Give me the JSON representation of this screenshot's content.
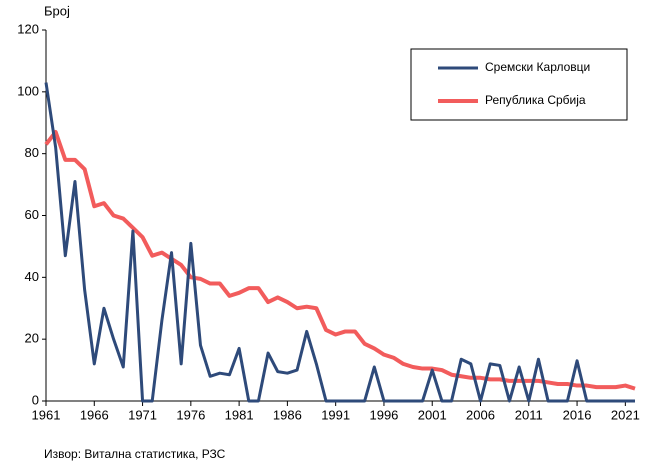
{
  "chart_data": {
    "type": "line",
    "y_label": "Број",
    "source": "Извор: Витална статистика, РЗС",
    "x": [
      1961,
      1962,
      1963,
      1964,
      1965,
      1966,
      1967,
      1968,
      1969,
      1970,
      1971,
      1972,
      1973,
      1974,
      1975,
      1976,
      1977,
      1978,
      1979,
      1980,
      1981,
      1982,
      1983,
      1984,
      1985,
      1986,
      1987,
      1988,
      1989,
      1990,
      1991,
      1992,
      1993,
      1994,
      1995,
      1996,
      1997,
      1998,
      1999,
      2000,
      2001,
      2002,
      2003,
      2004,
      2005,
      2006,
      2007,
      2008,
      2009,
      2010,
      2011,
      2012,
      2013,
      2014,
      2015,
      2016,
      2017,
      2018,
      2019,
      2020,
      2021,
      2022
    ],
    "series": [
      {
        "name": "Сремски Карловци",
        "color": "#2e4a7a",
        "values": [
          103,
          82,
          47,
          71,
          36,
          12,
          30,
          20,
          11,
          55,
          0,
          0,
          26,
          48,
          12,
          51,
          18,
          8,
          9,
          8.5,
          17,
          0,
          0,
          15.5,
          9.5,
          9,
          10,
          22.5,
          12,
          0,
          0,
          0,
          0,
          0,
          11,
          0,
          0,
          0,
          0,
          0,
          10,
          0,
          0,
          13.5,
          12,
          0,
          12,
          11.5,
          0,
          11,
          0,
          13.5,
          0,
          0,
          0,
          13,
          0,
          0,
          0,
          0,
          0,
          0
        ]
      },
      {
        "name": "Република Србија",
        "color": "#f25c5c",
        "values": [
          83,
          87,
          78,
          78,
          75,
          63,
          64,
          60,
          59,
          56,
          53,
          47,
          48,
          46,
          44,
          40,
          39.5,
          38,
          38,
          34,
          35,
          36.5,
          36.5,
          32,
          33.5,
          32,
          30,
          30.5,
          30,
          23,
          21.5,
          22.5,
          22.5,
          18.5,
          17,
          15,
          14,
          12,
          11,
          10.5,
          10.5,
          10,
          8.5,
          8,
          7.5,
          7.5,
          7,
          7,
          6.5,
          6.5,
          6.5,
          6.5,
          6,
          5.5,
          5.5,
          5,
          5,
          4.5,
          4.5,
          4.5,
          5,
          4
        ]
      }
    ],
    "xlim": [
      1961,
      2022
    ],
    "xticks": [
      1961,
      1966,
      1971,
      1976,
      1981,
      1986,
      1991,
      1996,
      2001,
      2006,
      2011,
      2016,
      2021
    ],
    "ylim": [
      0,
      120
    ],
    "yticks": [
      0,
      20,
      40,
      60,
      80,
      100,
      120
    ],
    "legend": "top-right"
  }
}
